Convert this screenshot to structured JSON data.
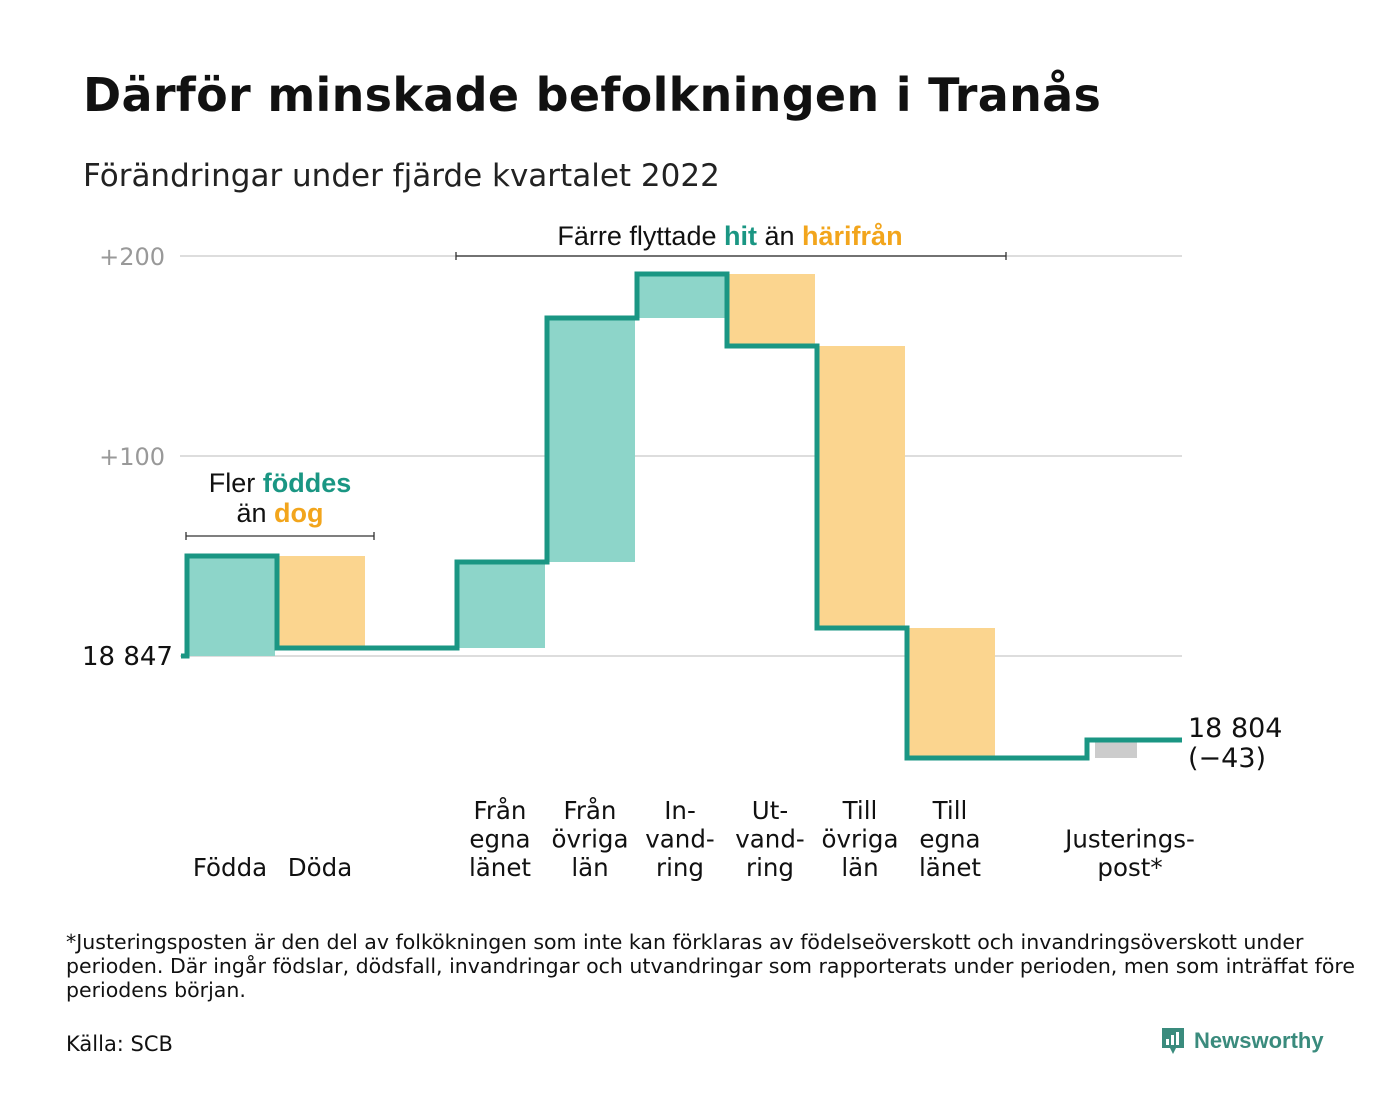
{
  "title": "Därför minskade befolkningen i Tranås",
  "subtitle": "Förändringar under fjärde kvartalet 2022",
  "footnote": "*Justeringsposten är den del av folkökningen som inte kan förklaras av födelseöverskott och invandringsöverskott under perioden. Där ingår födslar, dödsfall, invandringar och utvandringar som rapporterats under perioden, men som inträffat före periodens början.",
  "source": "Källa: SCB",
  "brand": {
    "name": "Newsworthy",
    "icon": "newsworthy-logo-icon"
  },
  "colors": {
    "in": "#8dd5c9",
    "out": "#fbd58f",
    "adjust": "#cccccc",
    "line": "#1a9683",
    "highlight_teal": "#1a9683",
    "highlight_orange": "#f2a51c",
    "grid": "#dddddd"
  },
  "chart_data": {
    "type": "waterfall",
    "start_label": "18 847",
    "end_label": "18 804",
    "end_change_label": "(−43)",
    "y_ticks": [
      {
        "value": 200,
        "label": "+200"
      },
      {
        "value": 100,
        "label": "+100"
      }
    ],
    "ylim": [
      -60,
      210
    ],
    "grid": true,
    "categories": [
      {
        "label_lines": [
          "Födda"
        ],
        "change": 50,
        "kind": "in"
      },
      {
        "label_lines": [
          "Döda"
        ],
        "change": -46,
        "kind": "out"
      },
      {
        "label_lines": [
          ""
        ],
        "change": 0,
        "kind": "spacer"
      },
      {
        "label_lines": [
          "Från",
          "egna",
          "länet"
        ],
        "change": 43,
        "kind": "in"
      },
      {
        "label_lines": [
          "Från",
          "övriga",
          "län"
        ],
        "change": 122,
        "kind": "in"
      },
      {
        "label_lines": [
          "In-",
          "vand-",
          "ring"
        ],
        "change": 22,
        "kind": "in"
      },
      {
        "label_lines": [
          "Ut-",
          "vand-",
          "ring"
        ],
        "change": -36,
        "kind": "out"
      },
      {
        "label_lines": [
          "Till",
          "övriga",
          "län"
        ],
        "change": -141,
        "kind": "out"
      },
      {
        "label_lines": [
          "Till",
          "egna",
          "länet"
        ],
        "change": -65,
        "kind": "out"
      },
      {
        "label_lines": [
          ""
        ],
        "change": 0,
        "kind": "spacer"
      },
      {
        "label_lines": [
          "Justerings-",
          "post*"
        ],
        "change": 9,
        "kind": "adjust"
      }
    ],
    "annotations": [
      {
        "parts": [
          {
            "text": "Fler ",
            "style": "normal"
          },
          {
            "text": "föddes",
            "style": "teal"
          },
          {
            "text": "än ",
            "style": "normal",
            "newline": true
          },
          {
            "text": "dog",
            "style": "orange"
          }
        ]
      },
      {
        "parts": [
          {
            "text": "Färre flyttade ",
            "style": "normal"
          },
          {
            "text": "hit",
            "style": "teal"
          },
          {
            "text": " än ",
            "style": "normal"
          },
          {
            "text": "härifrån",
            "style": "orange"
          }
        ]
      }
    ]
  }
}
